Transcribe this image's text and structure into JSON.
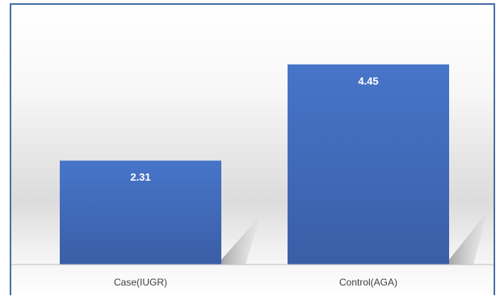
{
  "chart_data": {
    "type": "bar",
    "categories": [
      "Case(IUGR)",
      "Control(AGA)"
    ],
    "values": [
      2.31,
      4.45
    ],
    "value_labels": [
      "2.31",
      "4.45"
    ],
    "title": "",
    "xlabel": "",
    "ylabel": "",
    "ylim": [
      0,
      5.2
    ],
    "grid": false,
    "legend": "none",
    "colors": {
      "bar_top": "#4472c4",
      "bar_bottom": "#3a5fa8",
      "axis": "#bfbfbf",
      "frame": "#4a6fa5"
    }
  }
}
